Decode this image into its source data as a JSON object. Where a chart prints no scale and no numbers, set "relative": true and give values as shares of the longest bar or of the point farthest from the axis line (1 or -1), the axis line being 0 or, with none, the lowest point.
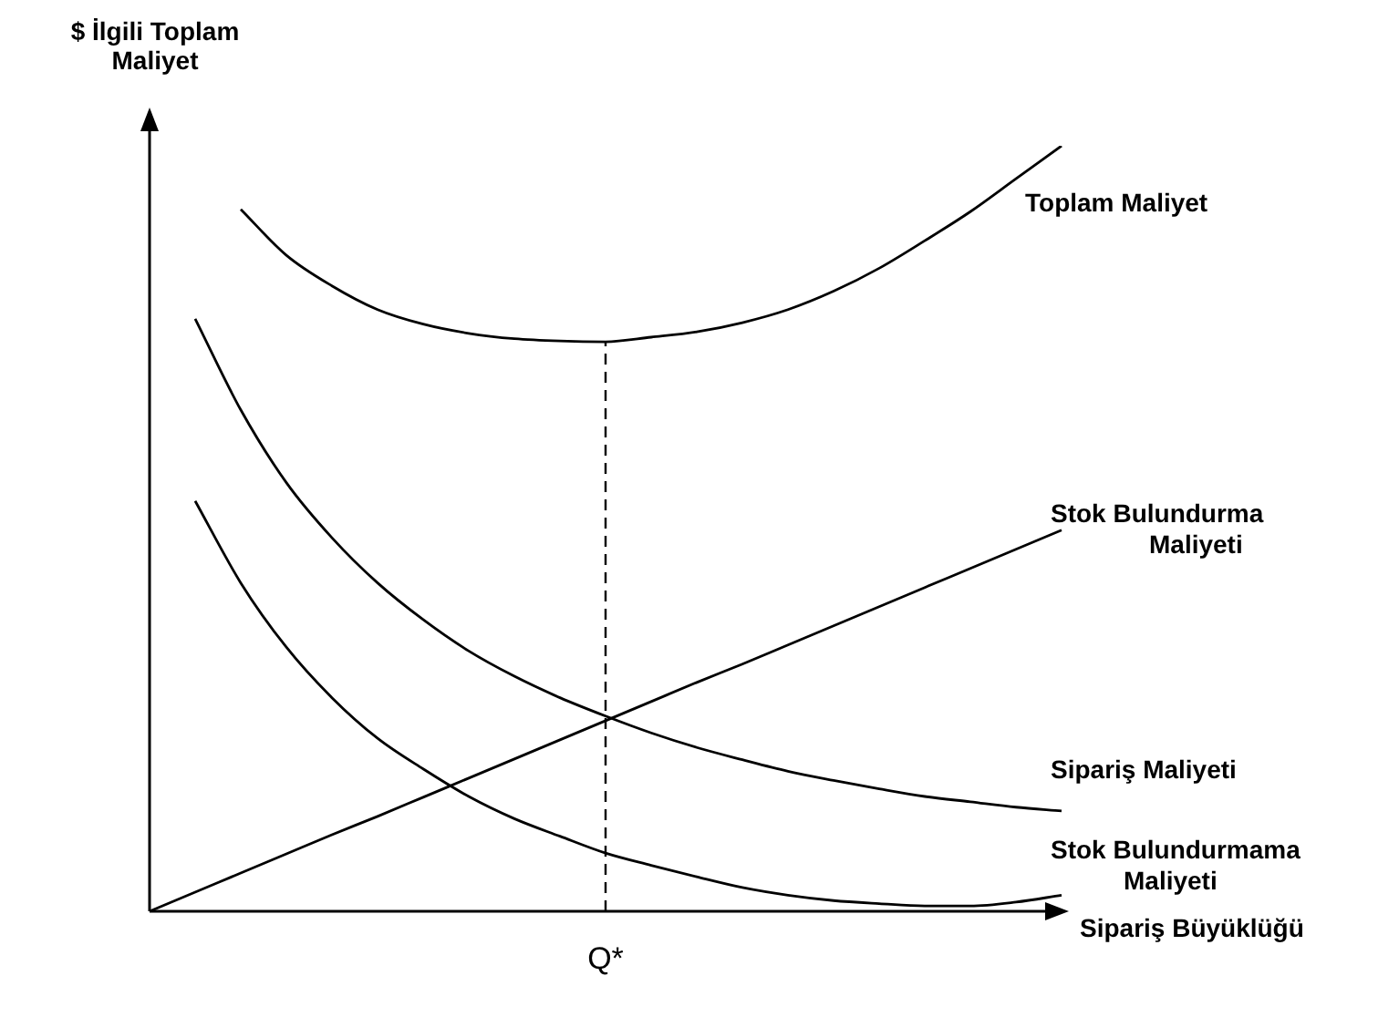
{
  "chart_data": {
    "type": "line",
    "relative": true,
    "xlabel": "Sipariş Büyüklüğü",
    "ylabel": "$ İlgili Toplam Maliyet",
    "legend": false,
    "marker": "none",
    "line_style": "solid",
    "annotations": [
      "Q*"
    ],
    "categories": [
      null,
      null,
      null,
      null,
      null,
      null,
      null,
      null,
      null,
      null,
      null,
      null,
      null,
      null,
      null,
      null,
      null,
      null,
      null,
      null,
      null
    ],
    "series": [
      {
        "name": "Toplam Maliyet",
        "color": "#000000",
        "values": [
          null,
          null,
          0.917,
          0.857,
          0.817,
          0.786,
          0.767,
          0.755,
          0.748,
          0.745,
          0.744,
          0.75,
          0.757,
          0.769,
          0.786,
          0.81,
          0.84,
          0.876,
          0.914,
          0.957,
          1
        ]
      },
      {
        "name": "Stok Bulundurma Maliyeti",
        "color": "#000000",
        "values": [
          0,
          0.025,
          0.05,
          0.075,
          0.1,
          0.124,
          0.149,
          0.174,
          0.199,
          0.224,
          0.249,
          0.274,
          0.299,
          0.323,
          0.348,
          0.373,
          0.398,
          0.423,
          0.448,
          0.473,
          0.498
        ]
      },
      {
        "name": "Sipariş Maliyeti",
        "color": "#000000",
        "values": [
          null,
          0.774,
          0.655,
          0.56,
          0.488,
          0.429,
          0.381,
          0.34,
          0.307,
          0.279,
          0.255,
          0.233,
          0.214,
          0.198,
          0.183,
          0.171,
          0.16,
          0.15,
          0.143,
          0.136,
          0.131
        ]
      },
      {
        "name": "Stok Bulundurmama Maliyeti",
        "color": "#000000",
        "values": [
          null,
          0.536,
          0.429,
          0.345,
          0.279,
          0.226,
          0.186,
          0.15,
          0.121,
          0.098,
          0.076,
          0.06,
          0.045,
          0.031,
          0.021,
          0.014,
          0.01,
          0.007,
          0.007,
          0.012,
          0.021
        ]
      }
    ]
  }
}
